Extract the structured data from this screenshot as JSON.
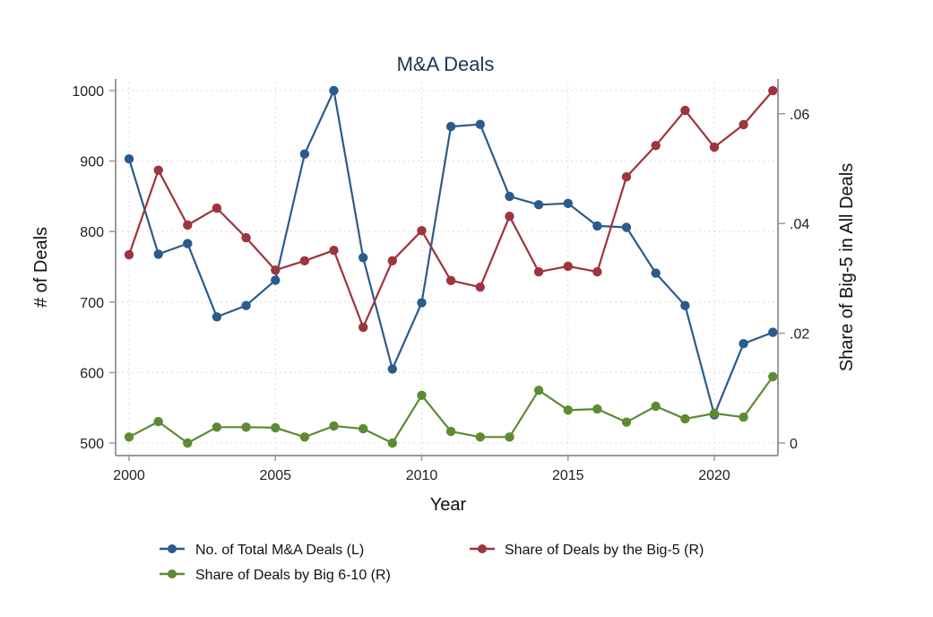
{
  "chart_data": {
    "type": "line",
    "title": "M&A Deals",
    "xlabel": "Year",
    "ylabel_left": "# of Deals",
    "ylabel_right": "Share of Big-5 in All Deals",
    "xlim": [
      2000,
      2022
    ],
    "ylim_left": [
      500,
      1000
    ],
    "ylim_right": [
      0,
      0.0642
    ],
    "x_ticks": [
      2000,
      2005,
      2010,
      2015,
      2020
    ],
    "x_tick_labels": [
      "2000",
      "2005",
      "2010",
      "2015",
      "2020"
    ],
    "y_left_ticks": [
      500,
      600,
      700,
      800,
      900,
      1000
    ],
    "y_left_tick_labels": [
      "500",
      "600",
      "700",
      "800",
      "900",
      "1000"
    ],
    "y_right_ticks": [
      0,
      0.02,
      0.04,
      0.06
    ],
    "y_right_tick_labels": [
      "0",
      ".02",
      ".04",
      ".06"
    ],
    "grid": true,
    "legend_position": "bottom",
    "x": [
      2000,
      2001,
      2002,
      2003,
      2004,
      2005,
      2006,
      2007,
      2008,
      2009,
      2010,
      2011,
      2012,
      2013,
      2014,
      2015,
      2016,
      2017,
      2018,
      2019,
      2020,
      2021,
      2022
    ],
    "series": [
      {
        "name": "No. of Total M&A Deals (L)",
        "axis": "left",
        "color": "#2a5b8c",
        "values": [
          903,
          768,
          783,
          679,
          695,
          731,
          910,
          1000,
          763,
          605,
          699,
          949,
          952,
          850,
          838,
          840,
          808,
          806,
          741,
          695,
          540,
          641,
          657
        ]
      },
      {
        "name": "Share of Deals by the Big-5 (R)",
        "axis": "right",
        "color": "#9e343c",
        "values": [
          0.0343,
          0.0497,
          0.0397,
          0.0428,
          0.0374,
          0.0315,
          0.0332,
          0.0351,
          0.0211,
          0.0332,
          0.0387,
          0.0296,
          0.0284,
          0.0413,
          0.0312,
          0.0322,
          0.0312,
          0.0485,
          0.0542,
          0.0606,
          0.0539,
          0.058,
          0.0642
        ]
      },
      {
        "name": "Share of Deals by Big 6-10 (R)",
        "axis": "right",
        "color": "#5e8a33",
        "values": [
          0.0011,
          0.0039,
          0.0,
          0.0029,
          0.0029,
          0.0028,
          0.0011,
          0.0031,
          0.0026,
          0.0,
          0.0087,
          0.0021,
          0.0011,
          0.0011,
          0.0096,
          0.006,
          0.0062,
          0.0038,
          0.0067,
          0.0044,
          0.0054,
          0.0047,
          0.0121
        ]
      }
    ]
  }
}
